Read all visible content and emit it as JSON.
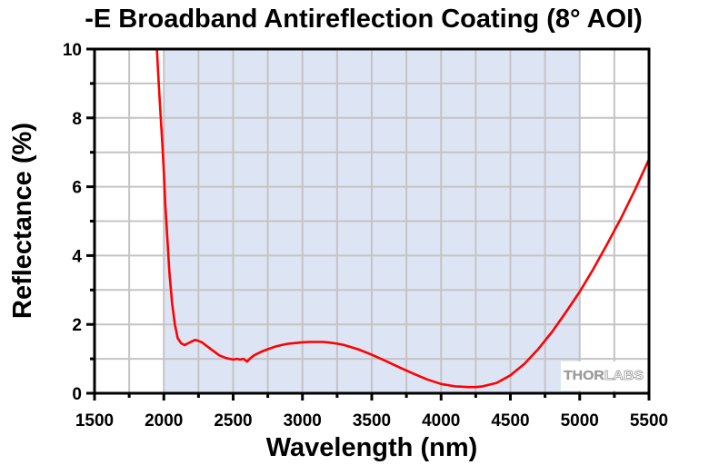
{
  "chart_data": {
    "type": "line",
    "title": "-E Broadband Antireflection Coating (8° AOI)",
    "xlabel": "Wavelength (nm)",
    "ylabel": "Reflectance (%)",
    "xlim": [
      1500,
      5500
    ],
    "ylim": [
      0,
      10
    ],
    "xticks": [
      1500,
      2000,
      2500,
      3000,
      3500,
      4000,
      4500,
      5000,
      5500
    ],
    "xtick_labels": [
      "1500",
      "2000",
      "2500",
      "3000",
      "3500",
      "4000",
      "4500",
      "5000",
      "5500"
    ],
    "yticks": [
      0,
      2,
      4,
      6,
      8,
      10
    ],
    "ytick_labels": [
      "0",
      "2",
      "4",
      "6",
      "8",
      "10"
    ],
    "x_minor_step": 250,
    "y_minor_step": 1,
    "grid": true,
    "shaded_region": {
      "x_start": 2000,
      "x_end": 5000,
      "color": "#dde5f5"
    },
    "series": [
      {
        "name": "Reflectance",
        "color": "#ff0000",
        "x": [
          1950,
          1960,
          1975,
          1990,
          2000,
          2010,
          2025,
          2040,
          2060,
          2080,
          2100,
          2125,
          2150,
          2175,
          2200,
          2225,
          2250,
          2275,
          2300,
          2350,
          2400,
          2450,
          2500,
          2525,
          2550,
          2575,
          2600,
          2625,
          2650,
          2700,
          2750,
          2800,
          2850,
          2900,
          2950,
          3000,
          3050,
          3100,
          3150,
          3200,
          3250,
          3300,
          3400,
          3500,
          3600,
          3700,
          3800,
          3900,
          4000,
          4100,
          4200,
          4250,
          4300,
          4400,
          4500,
          4600,
          4700,
          4800,
          4900,
          5000,
          5100,
          5200,
          5300,
          5400,
          5500
        ],
        "y": [
          10.0,
          9.2,
          8.2,
          7.2,
          6.4,
          5.5,
          4.5,
          3.5,
          2.6,
          2.0,
          1.6,
          1.45,
          1.4,
          1.45,
          1.5,
          1.55,
          1.52,
          1.48,
          1.4,
          1.25,
          1.1,
          1.02,
          0.98,
          1.0,
          0.98,
          1.0,
          0.92,
          1.02,
          1.1,
          1.2,
          1.28,
          1.35,
          1.4,
          1.44,
          1.46,
          1.48,
          1.49,
          1.49,
          1.49,
          1.47,
          1.44,
          1.4,
          1.28,
          1.12,
          0.94,
          0.75,
          0.57,
          0.4,
          0.27,
          0.2,
          0.18,
          0.18,
          0.2,
          0.3,
          0.52,
          0.85,
          1.28,
          1.78,
          2.35,
          2.95,
          3.62,
          4.35,
          5.1,
          5.92,
          6.8
        ]
      }
    ],
    "watermark": "THORLABS"
  }
}
